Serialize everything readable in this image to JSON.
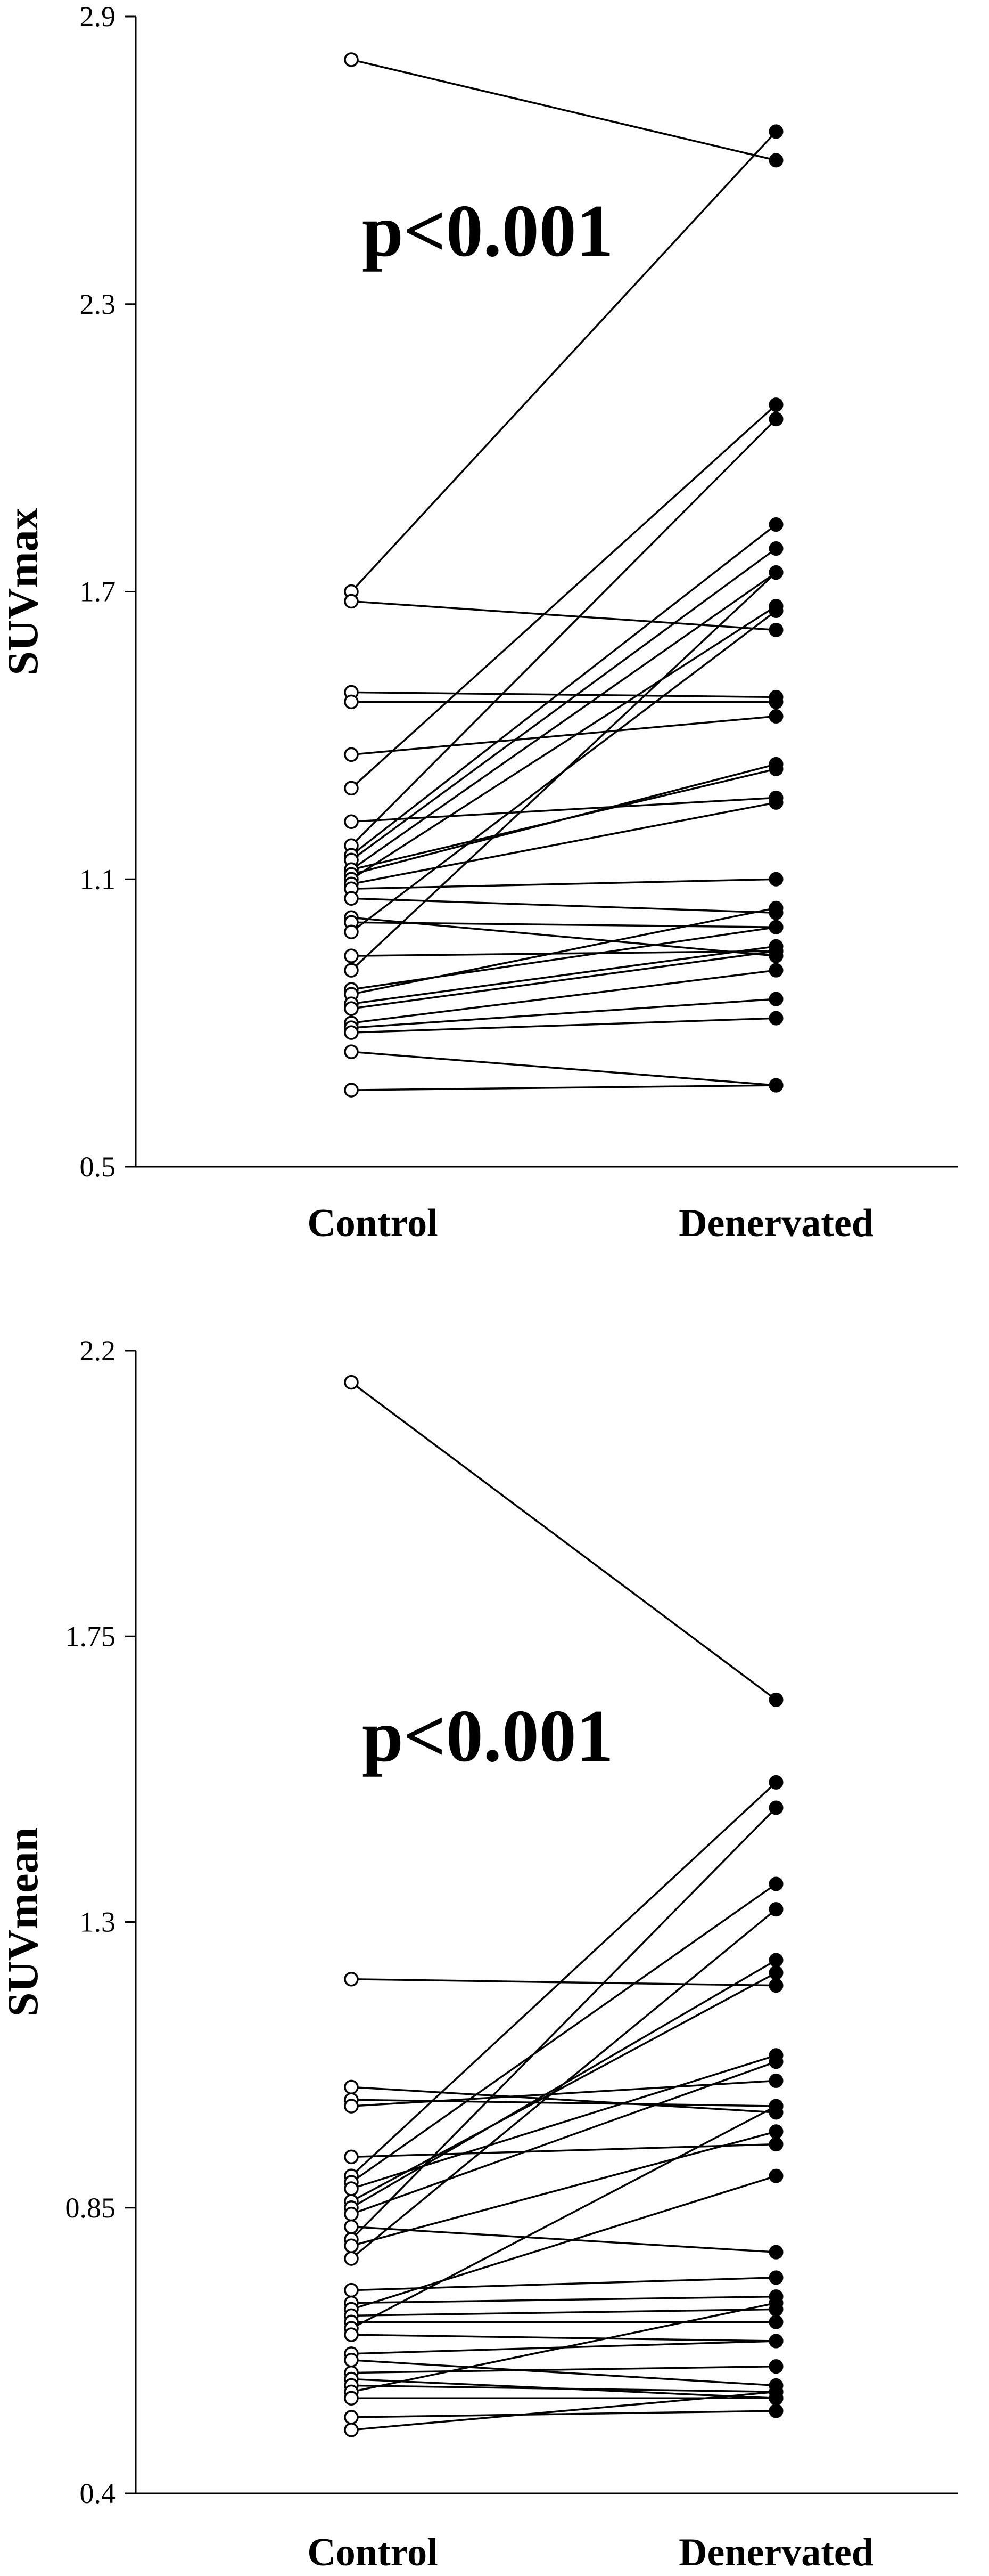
{
  "chart_data": [
    {
      "type": "paired-dot",
      "ylabel": "SUVmax",
      "ylim": [
        0.5,
        2.9
      ],
      "yticks": [
        "2.9",
        "2.3",
        "1.7",
        "1.1",
        "0.5"
      ],
      "categories": [
        "Control",
        "Denervated"
      ],
      "annotation": "p<0.001",
      "pairs": [
        [
          2.81,
          2.6
        ],
        [
          1.7,
          2.66
        ],
        [
          1.68,
          1.62
        ],
        [
          1.49,
          1.48
        ],
        [
          1.47,
          1.47
        ],
        [
          1.36,
          1.44
        ],
        [
          1.29,
          2.09
        ],
        [
          1.22,
          1.27
        ],
        [
          1.17,
          2.06
        ],
        [
          1.15,
          1.84
        ],
        [
          1.14,
          1.79
        ],
        [
          1.12,
          1.74
        ],
        [
          1.12,
          1.33
        ],
        [
          1.11,
          1.34
        ],
        [
          1.1,
          1.67
        ],
        [
          1.09,
          1.26
        ],
        [
          1.08,
          1.1
        ],
        [
          1.06,
          1.03
        ],
        [
          1.02,
          0.94
        ],
        [
          1.01,
          1.0
        ],
        [
          0.99,
          1.66
        ],
        [
          0.94,
          0.95
        ],
        [
          0.91,
          1.74
        ],
        [
          0.87,
          1.0
        ],
        [
          0.86,
          1.04
        ],
        [
          0.84,
          0.96
        ],
        [
          0.83,
          0.95
        ],
        [
          0.8,
          0.91
        ],
        [
          0.79,
          0.85
        ],
        [
          0.78,
          0.81
        ],
        [
          0.74,
          0.67
        ],
        [
          0.66,
          0.67
        ]
      ]
    },
    {
      "type": "paired-dot",
      "ylabel": "SUVmean",
      "ylim": [
        0.4,
        2.2
      ],
      "yticks": [
        "2.2",
        "1.75",
        "1.3",
        "0.85",
        "0.4"
      ],
      "categories": [
        "Control",
        "Denervated"
      ],
      "annotation": "p<0.001",
      "pairs": [
        [
          2.15,
          1.65
        ],
        [
          1.21,
          1.2
        ],
        [
          1.04,
          1.0
        ],
        [
          1.02,
          1.01
        ],
        [
          1.01,
          1.05
        ],
        [
          0.93,
          0.95
        ],
        [
          0.9,
          1.52
        ],
        [
          0.89,
          1.36
        ],
        [
          0.88,
          1.09
        ],
        [
          0.86,
          1.22
        ],
        [
          0.85,
          1.24
        ],
        [
          0.84,
          1.08
        ],
        [
          0.82,
          0.78
        ],
        [
          0.8,
          1.48
        ],
        [
          0.79,
          0.97
        ],
        [
          0.77,
          1.32
        ],
        [
          0.72,
          0.74
        ],
        [
          0.7,
          0.71
        ],
        [
          0.69,
          0.9
        ],
        [
          0.68,
          0.69
        ],
        [
          0.67,
          0.67
        ],
        [
          0.66,
          1.01
        ],
        [
          0.65,
          0.64
        ],
        [
          0.62,
          0.64
        ],
        [
          0.61,
          0.57
        ],
        [
          0.59,
          0.6
        ],
        [
          0.58,
          0.55
        ],
        [
          0.57,
          0.56
        ],
        [
          0.56,
          0.7
        ],
        [
          0.55,
          0.55
        ],
        [
          0.52,
          0.53
        ],
        [
          0.5,
          0.56
        ]
      ]
    }
  ]
}
